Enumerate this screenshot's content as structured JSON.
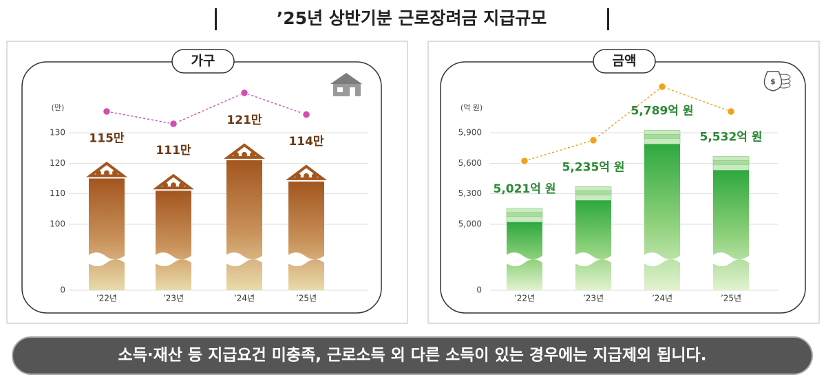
{
  "title": "’25년 상반기분 근로장려금 지급규모",
  "chart_data": [
    {
      "type": "bar",
      "title": "가구",
      "unit": "(만)",
      "categories": [
        "’22년",
        "’23년",
        "’24년",
        "’25년"
      ],
      "values": [
        115,
        111,
        121,
        114
      ],
      "value_labels": [
        "115만",
        "111만",
        "121만",
        "114만"
      ],
      "ylim": [
        0,
        130
      ],
      "yticks": [
        0,
        100,
        110,
        120,
        130
      ],
      "color": "#a3561f",
      "line_color": "#d24fb0",
      "grid": true
    },
    {
      "type": "bar",
      "title": "금액",
      "unit": "(억 원)",
      "categories": [
        "’22년",
        "’23년",
        "’24년",
        "’25년"
      ],
      "values": [
        5021,
        5235,
        5789,
        5532
      ],
      "value_labels": [
        "5,021억 원",
        "5,235억 원",
        "5,789억 원",
        "5,532억 원"
      ],
      "ylim": [
        0,
        5900
      ],
      "yticks": [
        0,
        {
          "value": 5000,
          "label": "5,000"
        },
        {
          "value": 5300,
          "label": "5,300"
        },
        {
          "value": 5600,
          "label": "5,600"
        },
        {
          "value": 5900,
          "label": "5,900"
        }
      ],
      "color": "#2ea83f",
      "line_color": "#f0a21c",
      "grid": true
    }
  ],
  "note": "소득·재산 등 지급요건 미충족, 근로소득 외 다른 소득이 있는 경우에는 지급제외 됩니다."
}
